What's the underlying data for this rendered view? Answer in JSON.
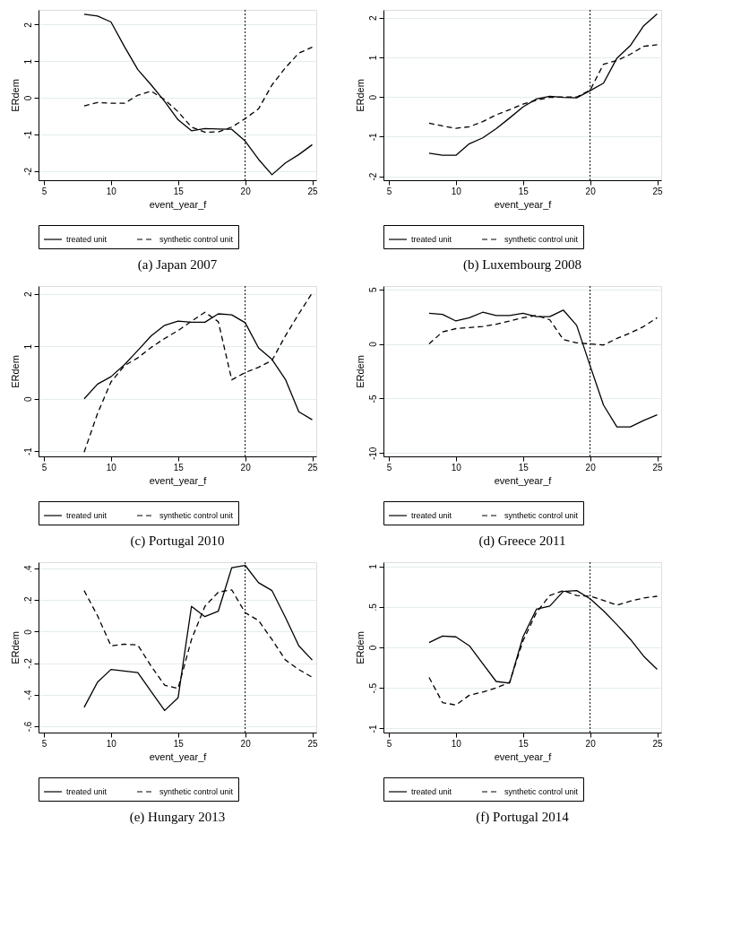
{
  "chart_data": [
    {
      "type": "line",
      "title": "(a) Japan 2007",
      "xlabel": "event_year_f",
      "ylabel": "ERdem",
      "xlim": [
        4.6,
        25.3
      ],
      "xticks": [
        5,
        10,
        15,
        20,
        25
      ],
      "ylim": [
        -2.25,
        2.4
      ],
      "yticks": [
        -2,
        -1,
        0,
        1,
        2
      ],
      "grid": "y",
      "legend": "bottom",
      "x": [
        8,
        9,
        10,
        11,
        12,
        13,
        14,
        15,
        16,
        17,
        18,
        19,
        20,
        21,
        22,
        23,
        24,
        25
      ],
      "ref_lines": [
        {
          "axis": "x",
          "value": 20,
          "line_style": "dotted",
          "color": "#000000"
        }
      ],
      "series": [
        {
          "name": "treated unit",
          "color": "#000000",
          "line_style": "solid",
          "values": [
            2.28,
            2.23,
            2.07,
            1.4,
            0.77,
            0.35,
            -0.1,
            -0.6,
            -0.9,
            -0.84,
            -0.85,
            -0.86,
            -1.18,
            -1.68,
            -2.1,
            -1.78,
            -1.55,
            -1.28
          ]
        },
        {
          "name": "synthetic control unit",
          "color": "#000000",
          "line_style": "dashed",
          "values": [
            -0.22,
            -0.13,
            -0.15,
            -0.15,
            0.07,
            0.18,
            -0.05,
            -0.38,
            -0.8,
            -0.94,
            -0.93,
            -0.8,
            -0.57,
            -0.3,
            0.35,
            0.82,
            1.22,
            1.38
          ]
        }
      ]
    },
    {
      "type": "line",
      "title": "(b) Luxembourg 2008",
      "xlabel": "event_year_f",
      "ylabel": "ERdem",
      "xlim": [
        4.6,
        25.3
      ],
      "xticks": [
        5,
        10,
        15,
        20,
        25
      ],
      "ylim": [
        -2.1,
        2.2
      ],
      "yticks": [
        -2,
        -1,
        0,
        1,
        2
      ],
      "grid": "y",
      "legend": "bottom",
      "x": [
        8,
        9,
        10,
        11,
        12,
        13,
        14,
        15,
        16,
        17,
        18,
        19,
        20,
        21,
        22,
        23,
        24,
        25
      ],
      "ref_lines": [
        {
          "axis": "x",
          "value": 20,
          "line_style": "dotted",
          "color": "#000000"
        }
      ],
      "series": [
        {
          "name": "treated unit",
          "color": "#000000",
          "line_style": "solid",
          "values": [
            -1.42,
            -1.47,
            -1.47,
            -1.18,
            -1.03,
            -0.8,
            -0.53,
            -0.25,
            -0.05,
            0.02,
            -0.01,
            -0.02,
            0.16,
            0.35,
            0.98,
            1.3,
            1.8,
            2.1
          ]
        },
        {
          "name": "synthetic control unit",
          "color": "#000000",
          "line_style": "dashed",
          "values": [
            -0.66,
            -0.73,
            -0.79,
            -0.75,
            -0.62,
            -0.45,
            -0.32,
            -0.18,
            -0.08,
            -0.01,
            0.0,
            0.0,
            0.17,
            0.83,
            0.92,
            1.08,
            1.28,
            1.32
          ]
        }
      ]
    },
    {
      "type": "line",
      "title": "(c) Portugal 2010",
      "xlabel": "event_year_f",
      "ylabel": "ERdem",
      "xlim": [
        4.6,
        25.3
      ],
      "xticks": [
        5,
        10,
        15,
        20,
        25
      ],
      "ylim": [
        -1.1,
        2.15
      ],
      "yticks": [
        -1,
        0,
        1,
        2
      ],
      "grid": "y",
      "legend": "bottom",
      "x": [
        8,
        9,
        10,
        11,
        12,
        13,
        14,
        15,
        16,
        17,
        18,
        19,
        20,
        21,
        22,
        23,
        24,
        25
      ],
      "ref_lines": [
        {
          "axis": "x",
          "value": 20,
          "line_style": "dotted",
          "color": "#000000"
        }
      ],
      "series": [
        {
          "name": "treated unit",
          "color": "#000000",
          "line_style": "solid",
          "values": [
            0.0,
            0.28,
            0.42,
            0.65,
            0.92,
            1.2,
            1.4,
            1.48,
            1.46,
            1.46,
            1.62,
            1.6,
            1.45,
            0.97,
            0.75,
            0.37,
            -0.25,
            -0.4
          ]
        },
        {
          "name": "synthetic control unit",
          "color": "#000000",
          "line_style": "dashed",
          "values": [
            -1.02,
            -0.28,
            0.32,
            0.63,
            0.78,
            0.98,
            1.15,
            1.3,
            1.48,
            1.65,
            1.47,
            0.36,
            0.5,
            0.6,
            0.73,
            1.2,
            1.62,
            2.02
          ]
        }
      ]
    },
    {
      "type": "line",
      "title": "(d) Greece 2011",
      "xlabel": "event_year_f",
      "ylabel": "ERdem",
      "xlim": [
        4.6,
        25.3
      ],
      "xticks": [
        5,
        10,
        15,
        20,
        25
      ],
      "ylim": [
        -10.3,
        5.3
      ],
      "yticks": [
        -10,
        -5,
        0,
        5
      ],
      "grid": "y",
      "legend": "bottom",
      "x": [
        8,
        9,
        10,
        11,
        12,
        13,
        14,
        15,
        16,
        17,
        18,
        19,
        20,
        21,
        22,
        23,
        24,
        25
      ],
      "ref_lines": [
        {
          "axis": "x",
          "value": 20,
          "line_style": "dotted",
          "color": "#000000"
        }
      ],
      "series": [
        {
          "name": "treated unit",
          "color": "#000000",
          "line_style": "solid",
          "values": [
            2.8,
            2.7,
            2.1,
            2.4,
            2.9,
            2.6,
            2.6,
            2.8,
            2.5,
            2.5,
            3.1,
            1.7,
            -2.0,
            -5.6,
            -7.6,
            -7.6,
            -7.0,
            -6.5
          ]
        },
        {
          "name": "synthetic control unit",
          "color": "#000000",
          "line_style": "dashed",
          "values": [
            0.0,
            1.1,
            1.4,
            1.5,
            1.6,
            1.8,
            2.1,
            2.4,
            2.6,
            2.2,
            0.4,
            0.1,
            0.0,
            -0.1,
            0.5,
            1.0,
            1.6,
            2.4
          ]
        }
      ]
    },
    {
      "type": "line",
      "title": "(e) Hungary 2013",
      "xlabel": "event_year_f",
      "ylabel": "ERdem",
      "xlim": [
        4.6,
        25.3
      ],
      "xticks": [
        5,
        10,
        15,
        20,
        25
      ],
      "ylim": [
        -0.64,
        0.44
      ],
      "yticks": [
        {
          "value": -0.6,
          "label": "-.6"
        },
        {
          "value": -0.4,
          "label": "-.4"
        },
        {
          "value": -0.2,
          "label": "-.2"
        },
        0,
        {
          "value": 0.2,
          "label": ".2"
        },
        {
          "value": 0.4,
          "label": ".4"
        }
      ],
      "grid": "y",
      "legend": "bottom",
      "x": [
        8,
        9,
        10,
        11,
        12,
        13,
        14,
        15,
        16,
        17,
        18,
        19,
        20,
        21,
        22,
        23,
        24,
        25
      ],
      "ref_lines": [
        {
          "axis": "x",
          "value": 20,
          "line_style": "dotted",
          "color": "#000000"
        }
      ],
      "series": [
        {
          "name": "treated unit",
          "color": "#000000",
          "line_style": "solid",
          "values": [
            -0.48,
            -0.32,
            -0.24,
            -0.25,
            -0.26,
            -0.38,
            -0.5,
            -0.42,
            0.16,
            0.095,
            0.13,
            0.405,
            0.42,
            0.31,
            0.26,
            0.09,
            -0.09,
            -0.18
          ]
        },
        {
          "name": "synthetic control unit",
          "color": "#000000",
          "line_style": "dashed",
          "values": [
            0.26,
            0.1,
            -0.09,
            -0.08,
            -0.085,
            -0.22,
            -0.34,
            -0.36,
            -0.05,
            0.16,
            0.25,
            0.265,
            0.12,
            0.07,
            -0.05,
            -0.18,
            -0.24,
            -0.29
          ]
        }
      ]
    },
    {
      "type": "line",
      "title": "(f) Portugal 2014",
      "xlabel": "event_year_f",
      "ylabel": "ERdem",
      "xlim": [
        4.6,
        25.3
      ],
      "xticks": [
        5,
        10,
        15,
        20,
        25
      ],
      "ylim": [
        -1.05,
        1.05
      ],
      "yticks": [
        -1,
        {
          "value": -0.5,
          "label": "-.5"
        },
        0,
        {
          "value": 0.5,
          "label": ".5"
        },
        1
      ],
      "grid": "y",
      "legend": "bottom",
      "x": [
        8,
        9,
        10,
        11,
        12,
        13,
        14,
        15,
        16,
        17,
        18,
        19,
        20,
        21,
        22,
        23,
        24,
        25
      ],
      "ref_lines": [
        {
          "axis": "x",
          "value": 20,
          "line_style": "dotted",
          "color": "#000000"
        }
      ],
      "series": [
        {
          "name": "treated unit",
          "color": "#000000",
          "line_style": "solid",
          "values": [
            0.06,
            0.14,
            0.13,
            0.02,
            -0.2,
            -0.42,
            -0.44,
            0.13,
            0.47,
            0.51,
            0.69,
            0.7,
            0.6,
            0.45,
            0.28,
            0.1,
            -0.11,
            -0.27
          ]
        },
        {
          "name": "synthetic control unit",
          "color": "#000000",
          "line_style": "dashed",
          "values": [
            -0.37,
            -0.68,
            -0.71,
            -0.59,
            -0.55,
            -0.5,
            -0.43,
            0.08,
            0.43,
            0.64,
            0.7,
            0.64,
            0.63,
            0.58,
            0.52,
            0.57,
            0.61,
            0.63
          ]
        }
      ]
    }
  ]
}
